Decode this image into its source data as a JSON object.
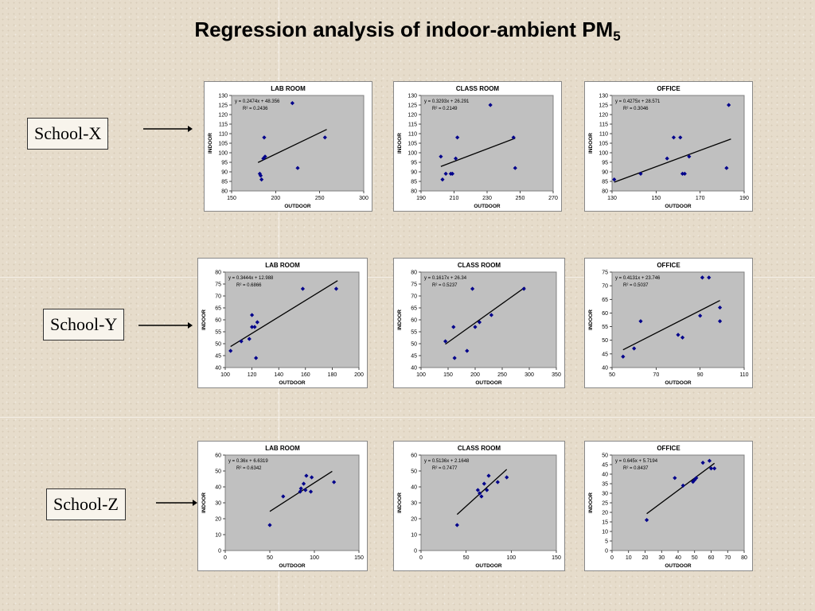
{
  "title": {
    "text": "Regression analysis of indoor-ambient PM",
    "subscript": "5"
  },
  "schools": [
    {
      "label": "School-X"
    },
    {
      "label": "School-Y"
    },
    {
      "label": "School-Z"
    }
  ],
  "chart_data": [
    {
      "type": "scatter",
      "title": "LAB ROOM",
      "xlabel": "OUTDOOR",
      "ylabel": "INDOOR",
      "xlim": [
        150,
        300
      ],
      "xticks": [
        150,
        200,
        250,
        300
      ],
      "ylim": [
        80,
        130
      ],
      "yticks": [
        80,
        85,
        90,
        95,
        100,
        105,
        110,
        115,
        120,
        125,
        130
      ],
      "equation": "y = 0.2474x + 48.356",
      "r2": "R² = 0.2436",
      "points": [
        [
          182,
          89
        ],
        [
          183,
          88
        ],
        [
          184,
          86
        ],
        [
          186,
          97
        ],
        [
          187,
          108
        ],
        [
          188,
          98
        ],
        [
          225,
          92
        ],
        [
          256,
          108
        ],
        [
          219,
          126
        ]
      ],
      "trend": [
        [
          180,
          94.9
        ],
        [
          258,
          112.2
        ]
      ]
    },
    {
      "type": "scatter",
      "title": "CLASS ROOM",
      "xlabel": "OUTDOOR",
      "ylabel": "INDOOR",
      "xlim": [
        190,
        270
      ],
      "xticks": [
        190,
        210,
        230,
        250,
        270
      ],
      "ylim": [
        80,
        130
      ],
      "yticks": [
        80,
        85,
        90,
        95,
        100,
        105,
        110,
        115,
        120,
        125,
        130
      ],
      "equation": "y = 0.3293x + 26.291",
      "r2": "R² = 0.2149",
      "points": [
        [
          202,
          98
        ],
        [
          203,
          86
        ],
        [
          205,
          89
        ],
        [
          208,
          89
        ],
        [
          209,
          89
        ],
        [
          211,
          97
        ],
        [
          212,
          108
        ],
        [
          232,
          125
        ],
        [
          246,
          108
        ],
        [
          247,
          92
        ]
      ],
      "trend": [
        [
          202,
          92.8
        ],
        [
          247,
          107.6
        ]
      ]
    },
    {
      "type": "scatter",
      "title": "OFFICE",
      "xlabel": "OUTDOOR",
      "ylabel": "INDOOR",
      "xlim": [
        130,
        190
      ],
      "xticks": [
        130,
        150,
        170,
        190
      ],
      "ylim": [
        80,
        130
      ],
      "yticks": [
        80,
        85,
        90,
        95,
        100,
        105,
        110,
        115,
        120,
        125,
        130
      ],
      "equation": "y = 0.4275x + 28.571",
      "r2": "R² = 0.3046",
      "points": [
        [
          131,
          86
        ],
        [
          143,
          89
        ],
        [
          155,
          97
        ],
        [
          158,
          108
        ],
        [
          161,
          108
        ],
        [
          162,
          89
        ],
        [
          163,
          89
        ],
        [
          165,
          98
        ],
        [
          182,
          92
        ],
        [
          183,
          125
        ]
      ],
      "trend": [
        [
          131,
          84.6
        ],
        [
          184,
          107.2
        ]
      ]
    },
    {
      "type": "scatter",
      "title": "LAB ROOM",
      "xlabel": "OUTDOOR",
      "ylabel": "INDOOR",
      "xlim": [
        100,
        200
      ],
      "xticks": [
        100,
        120,
        140,
        160,
        180,
        200
      ],
      "ylim": [
        40,
        80
      ],
      "yticks": [
        40,
        45,
        50,
        55,
        60,
        65,
        70,
        75,
        80
      ],
      "equation": "y = 0.3444x + 12.988",
      "r2": "R² = 0.6866",
      "points": [
        [
          104,
          47
        ],
        [
          112,
          51
        ],
        [
          118,
          52
        ],
        [
          120,
          62
        ],
        [
          120,
          57
        ],
        [
          122,
          57
        ],
        [
          123,
          44
        ],
        [
          124,
          59
        ],
        [
          158,
          73
        ],
        [
          183,
          73
        ]
      ],
      "trend": [
        [
          104,
          48.8
        ],
        [
          184,
          76.4
        ]
      ]
    },
    {
      "type": "scatter",
      "title": "CLASS ROOM",
      "xlabel": "OUTDOOR",
      "ylabel": "INDOOR",
      "xlim": [
        100,
        350
      ],
      "xticks": [
        100,
        150,
        200,
        250,
        300,
        350
      ],
      "ylim": [
        40,
        80
      ],
      "yticks": [
        40,
        45,
        50,
        55,
        60,
        65,
        70,
        75,
        80
      ],
      "equation": "y = 0.1617x + 26.34",
      "r2": "R² = 0.5237",
      "points": [
        [
          145,
          51
        ],
        [
          160,
          57
        ],
        [
          162,
          44
        ],
        [
          185,
          47
        ],
        [
          195,
          73
        ],
        [
          200,
          57
        ],
        [
          208,
          59
        ],
        [
          230,
          62
        ],
        [
          290,
          73
        ]
      ],
      "trend": [
        [
          145,
          49.8
        ],
        [
          292,
          73.6
        ]
      ]
    },
    {
      "type": "scatter",
      "title": "OFFICE",
      "xlabel": "OUTDOOR",
      "ylabel": "INDOOR",
      "xlim": [
        50,
        110
      ],
      "xticks": [
        50,
        70,
        90,
        110
      ],
      "ylim": [
        40,
        75
      ],
      "yticks": [
        40,
        45,
        50,
        55,
        60,
        65,
        70,
        75
      ],
      "equation": "y = 0.4131x + 23.746",
      "r2": "R² = 0.5037",
      "points": [
        [
          55,
          44
        ],
        [
          60,
          47
        ],
        [
          63,
          57
        ],
        [
          80,
          52
        ],
        [
          82,
          51
        ],
        [
          90,
          59
        ],
        [
          91,
          73
        ],
        [
          94,
          73
        ],
        [
          99,
          62
        ],
        [
          99,
          57
        ]
      ],
      "trend": [
        [
          55,
          46.5
        ],
        [
          99,
          64.6
        ]
      ]
    },
    {
      "type": "scatter",
      "title": "LAB ROOM",
      "xlabel": "OUTDOOR",
      "ylabel": "INDOOR",
      "xlim": [
        0,
        150
      ],
      "xticks": [
        0,
        50,
        100,
        150
      ],
      "ylim": [
        0,
        60
      ],
      "yticks": [
        0,
        10,
        20,
        30,
        40,
        50,
        60
      ],
      "equation": "y = 0.36x + 6.6319",
      "r2": "R² = 0.6342",
      "points": [
        [
          50,
          16
        ],
        [
          65,
          34
        ],
        [
          84,
          37
        ],
        [
          85,
          39
        ],
        [
          88,
          42
        ],
        [
          90,
          38
        ],
        [
          91,
          47
        ],
        [
          96,
          37
        ],
        [
          97,
          46
        ],
        [
          122,
          43
        ]
      ],
      "trend": [
        [
          50,
          24.6
        ],
        [
          120,
          49.8
        ]
      ]
    },
    {
      "type": "scatter",
      "title": "CLASS ROOM",
      "xlabel": "OUTDOOR",
      "ylabel": "INDOOR",
      "xlim": [
        0,
        150
      ],
      "xticks": [
        0,
        50,
        100,
        150
      ],
      "ylim": [
        0,
        60
      ],
      "yticks": [
        0,
        10,
        20,
        30,
        40,
        50,
        60
      ],
      "equation": "y = 0.5136x + 2.1648",
      "r2": "R² = 0.7477",
      "points": [
        [
          40,
          16
        ],
        [
          63,
          38
        ],
        [
          65,
          36
        ],
        [
          67,
          34
        ],
        [
          70,
          42
        ],
        [
          73,
          38
        ],
        [
          75,
          47
        ],
        [
          85,
          43
        ],
        [
          95,
          46
        ]
      ],
      "trend": [
        [
          40,
          22.7
        ],
        [
          95,
          51
        ]
      ]
    },
    {
      "type": "scatter",
      "title": "OFFICE",
      "xlabel": "OUTDOOR",
      "ylabel": "INDOOR",
      "xlim": [
        0,
        80
      ],
      "xticks": [
        0,
        10,
        20,
        30,
        40,
        50,
        60,
        70,
        80
      ],
      "ylim": [
        0,
        50
      ],
      "yticks": [
        0,
        5,
        10,
        15,
        20,
        25,
        30,
        35,
        40,
        45,
        50
      ],
      "equation": "y = 0.645x + 5.7194",
      "r2": "R² = 0.8437",
      "points": [
        [
          21,
          16
        ],
        [
          38,
          38
        ],
        [
          43,
          34
        ],
        [
          49,
          36
        ],
        [
          50,
          37
        ],
        [
          51,
          38
        ],
        [
          55,
          46
        ],
        [
          59,
          47
        ],
        [
          60,
          43
        ],
        [
          62,
          43
        ]
      ],
      "trend": [
        [
          21,
          19.3
        ],
        [
          62,
          45.7
        ]
      ]
    }
  ]
}
